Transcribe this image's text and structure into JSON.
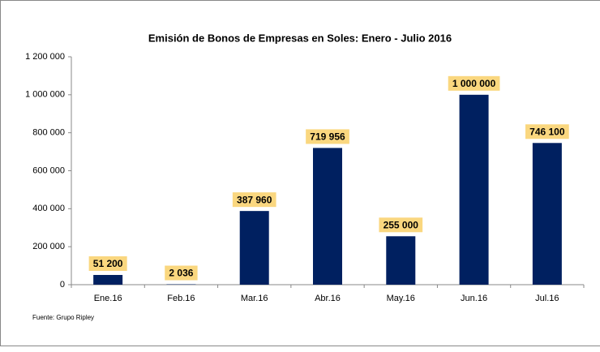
{
  "chart_data": {
    "type": "bar",
    "title": "Emisión de Bonos de Empresas en Soles: Enero - Julio 2016",
    "categories": [
      "Ene.16",
      "Feb.16",
      "Mar.16",
      "Abr.16",
      "May.16",
      "Jun.16",
      "Jul.16"
    ],
    "values": [
      51200,
      2036,
      387960,
      719956,
      255000,
      1000000,
      746100
    ],
    "value_labels": [
      "51 200",
      "2 036",
      "387 960",
      "719 956",
      "255 000",
      "1 000 000",
      "746 100"
    ],
    "color": "#002060",
    "label_color": "#fad77f",
    "ylim": [
      0,
      1200000
    ],
    "yticks": [
      0,
      {
        "value": 200000,
        "label": "200 000"
      },
      {
        "value": 400000,
        "label": "400 000"
      },
      {
        "value": 600000,
        "label": "600 000"
      },
      {
        "value": 800000,
        "label": "800 000"
      },
      {
        "value": 1000000,
        "label": "1 000 000"
      },
      {
        "value": 1200000,
        "label": "1 200 000"
      }
    ],
    "source": "Fuente: Grupo Ripley",
    "grid": false
  }
}
